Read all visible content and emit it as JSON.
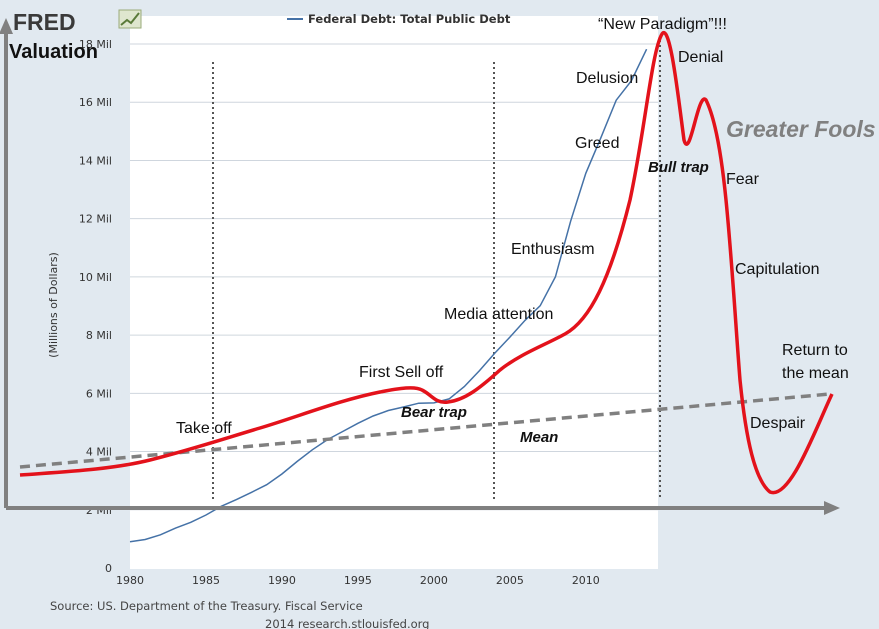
{
  "brand": {
    "logo_text": "FRED"
  },
  "legend": {
    "series_label": "Federal Debt: Total Public Debt"
  },
  "source": {
    "line1": "Source: US. Department of the Treasury. Fiscal Service",
    "line2": "2014 research.stlouisfed.org"
  },
  "colors": {
    "debt_line": "#4572a7",
    "bubble_curve": "#e3121b",
    "mean_line": "#808080",
    "plot_bg": "#ffffff",
    "outer_bg": "#e1e9f0",
    "axis_arrow": "#808080",
    "vline": "#555555"
  },
  "chart_data": {
    "type": "line",
    "ylabel": "(Millions of Dollars)",
    "y_tick_labels": [
      "0",
      "2 Mil",
      "4 Mil",
      "6 Mil",
      "8 Mil",
      "10 Mil",
      "12 Mil",
      "14 Mil",
      "16 Mil",
      "18 Mil"
    ],
    "x_tick_labels": [
      "1980",
      "1985",
      "1990",
      "1995",
      "2000",
      "2005",
      "2010"
    ],
    "xlim": [
      1980,
      2014.75
    ],
    "ylim": [
      0,
      18000000
    ],
    "grid": "horizontal",
    "legend_position": "top",
    "series": [
      {
        "name": "Federal Debt: Total Public Debt",
        "x": [
          1980,
          1981,
          1982,
          1983,
          1984,
          1985,
          1986,
          1987,
          1988,
          1989,
          1990,
          1991,
          1992,
          1993,
          1994,
          1995,
          1996,
          1997,
          1998,
          1999,
          2000,
          2001,
          2002,
          2003,
          2004,
          2005,
          2006,
          2007,
          2008,
          2009,
          2010,
          2011,
          2012,
          2013,
          2014
        ],
        "values": [
          900000,
          980000,
          1140000,
          1370000,
          1570000,
          1820000,
          2120000,
          2350000,
          2600000,
          2860000,
          3230000,
          3660000,
          4060000,
          4410000,
          4690000,
          4970000,
          5220000,
          5410000,
          5530000,
          5660000,
          5670000,
          5810000,
          6230000,
          6780000,
          7380000,
          7930000,
          8510000,
          9010000,
          10000000,
          11910000,
          13560000,
          14790000,
          16070000,
          16740000,
          17820000
        ]
      }
    ],
    "overlay": {
      "annotations": [
        {
          "key": "valuation",
          "text": "Valuation"
        },
        {
          "key": "new_paradigm",
          "text": "“New Paradigm”!!!"
        },
        {
          "key": "denial",
          "text": "Denial"
        },
        {
          "key": "delusion",
          "text": "Delusion"
        },
        {
          "key": "greater_fools",
          "text": "Greater Fools"
        },
        {
          "key": "greed",
          "text": "Greed"
        },
        {
          "key": "bull_trap",
          "text": "Bull trap"
        },
        {
          "key": "fear",
          "text": "Fear"
        },
        {
          "key": "enthusiasm",
          "text": "Enthusiasm"
        },
        {
          "key": "capitulation",
          "text": "Capitulation"
        },
        {
          "key": "media_attention",
          "text": "Media attention"
        },
        {
          "key": "return_1",
          "text": "Return to"
        },
        {
          "key": "return_2",
          "text": "the mean"
        },
        {
          "key": "first_selloff",
          "text": "First Sell off"
        },
        {
          "key": "bear_trap",
          "text": "Bear trap"
        },
        {
          "key": "take_off",
          "text": "Take off"
        },
        {
          "key": "despair",
          "text": "Despair"
        },
        {
          "key": "mean",
          "text": "Mean"
        }
      ]
    }
  }
}
